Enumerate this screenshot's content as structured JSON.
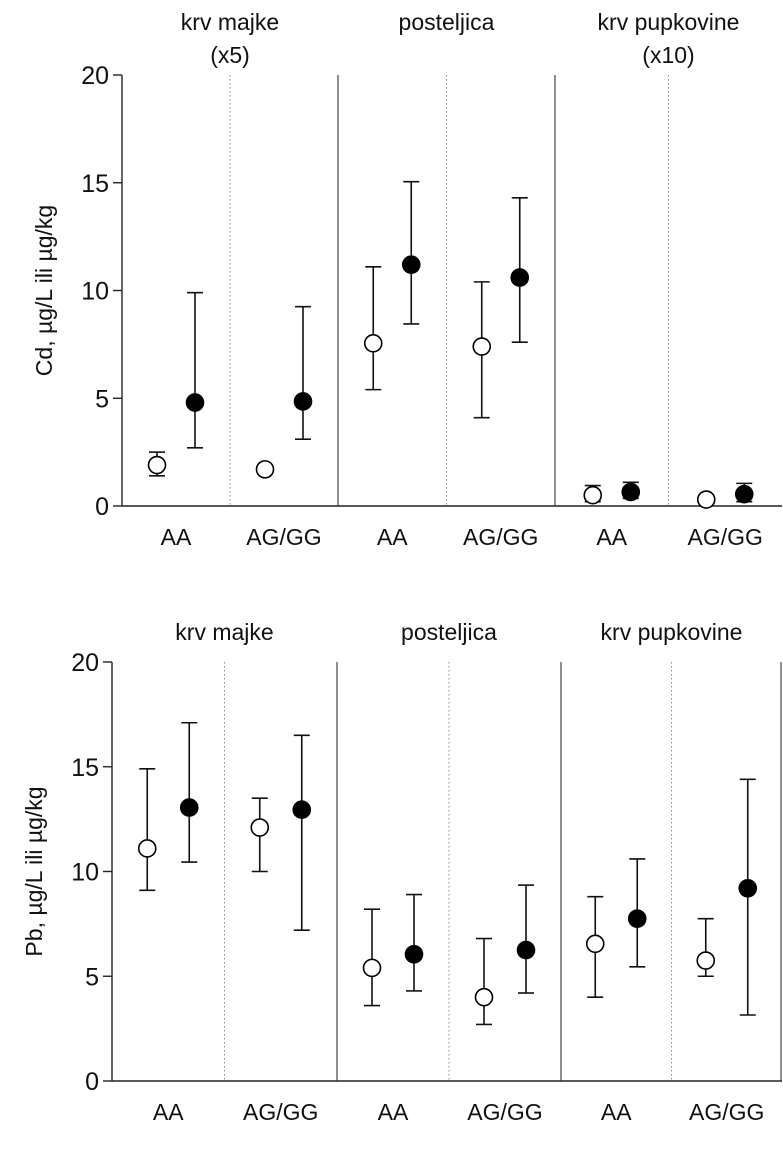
{
  "chart_data": [
    {
      "type": "scatter",
      "title": "",
      "ylabel": "Cd, µg/L ili µg/kg",
      "xlabel": "",
      "ylim": [
        0,
        20
      ],
      "yticks": [
        "0",
        "5",
        "10",
        "15",
        "20"
      ],
      "groups": [
        {
          "label": [
            "krv majke",
            "(x5)"
          ],
          "categories": [
            {
              "label": "AA",
              "points": [
                {
                  "marker": "open",
                  "value": 1.9,
                  "err_low": 1.4,
                  "err_high": 2.5
                },
                {
                  "marker": "filled",
                  "value": 4.8,
                  "err_low": 2.7,
                  "err_high": 9.9
                }
              ]
            },
            {
              "label": "AG/GG",
              "points": [
                {
                  "marker": "open",
                  "value": 1.7,
                  "err_low": null,
                  "err_high": null
                },
                {
                  "marker": "filled",
                  "value": 4.85,
                  "err_low": 3.1,
                  "err_high": 9.25
                }
              ]
            }
          ]
        },
        {
          "label": [
            "posteljica"
          ],
          "categories": [
            {
              "label": "AA",
              "points": [
                {
                  "marker": "open",
                  "value": 7.55,
                  "err_low": 5.4,
                  "err_high": 11.1
                },
                {
                  "marker": "filled",
                  "value": 11.2,
                  "err_low": 8.45,
                  "err_high": 15.05
                }
              ]
            },
            {
              "label": "AG/GG",
              "points": [
                {
                  "marker": "open",
                  "value": 7.4,
                  "err_low": 4.1,
                  "err_high": 10.4
                },
                {
                  "marker": "filled",
                  "value": 10.6,
                  "err_low": 7.6,
                  "err_high": 14.3
                }
              ]
            }
          ]
        },
        {
          "label": [
            "krv pupkovine",
            "(x10)"
          ],
          "categories": [
            {
              "label": "AA",
              "points": [
                {
                  "marker": "open",
                  "value": 0.5,
                  "err_low": 0.2,
                  "err_high": 0.95
                },
                {
                  "marker": "filled",
                  "value": 0.65,
                  "err_low": 0.35,
                  "err_high": 1.1
                }
              ]
            },
            {
              "label": "AG/GG",
              "points": [
                {
                  "marker": "open",
                  "value": 0.3,
                  "err_low": 0.15,
                  "err_high": 0.5
                },
                {
                  "marker": "filled",
                  "value": 0.55,
                  "err_low": 0.2,
                  "err_high": 1.05
                }
              ]
            }
          ]
        }
      ]
    },
    {
      "type": "scatter",
      "title": "",
      "ylabel": "Pb, µg/L ili µg/kg",
      "xlabel": "",
      "ylim": [
        0,
        20
      ],
      "yticks": [
        "0",
        "5",
        "10",
        "15",
        "20"
      ],
      "groups": [
        {
          "label": [
            "krv majke"
          ],
          "categories": [
            {
              "label": "AA",
              "points": [
                {
                  "marker": "open",
                  "value": 11.1,
                  "err_low": 9.1,
                  "err_high": 14.9
                },
                {
                  "marker": "filled",
                  "value": 13.05,
                  "err_low": 10.45,
                  "err_high": 17.1
                }
              ]
            },
            {
              "label": "AG/GG",
              "points": [
                {
                  "marker": "open",
                  "value": 12.1,
                  "err_low": 10.0,
                  "err_high": 13.5
                },
                {
                  "marker": "filled",
                  "value": 12.95,
                  "err_low": 7.2,
                  "err_high": 16.5
                }
              ]
            }
          ]
        },
        {
          "label": [
            "posteljica"
          ],
          "categories": [
            {
              "label": "AA",
              "points": [
                {
                  "marker": "open",
                  "value": 5.4,
                  "err_low": 3.6,
                  "err_high": 8.2
                },
                {
                  "marker": "filled",
                  "value": 6.05,
                  "err_low": 4.3,
                  "err_high": 8.9
                }
              ]
            },
            {
              "label": "AG/GG",
              "points": [
                {
                  "marker": "open",
                  "value": 4.0,
                  "err_low": 2.7,
                  "err_high": 6.8
                },
                {
                  "marker": "filled",
                  "value": 6.25,
                  "err_low": 4.2,
                  "err_high": 9.35
                }
              ]
            }
          ]
        },
        {
          "label": [
            "krv pupkovine"
          ],
          "categories": [
            {
              "label": "AA",
              "points": [
                {
                  "marker": "open",
                  "value": 6.55,
                  "err_low": 4.0,
                  "err_high": 8.8
                },
                {
                  "marker": "filled",
                  "value": 7.75,
                  "err_low": 5.45,
                  "err_high": 10.6
                }
              ]
            },
            {
              "label": "AG/GG",
              "points": [
                {
                  "marker": "open",
                  "value": 5.75,
                  "err_low": 5.0,
                  "err_high": 7.75
                },
                {
                  "marker": "filled",
                  "value": 9.2,
                  "err_low": 3.15,
                  "err_high": 14.4
                }
              ]
            }
          ]
        }
      ]
    }
  ]
}
